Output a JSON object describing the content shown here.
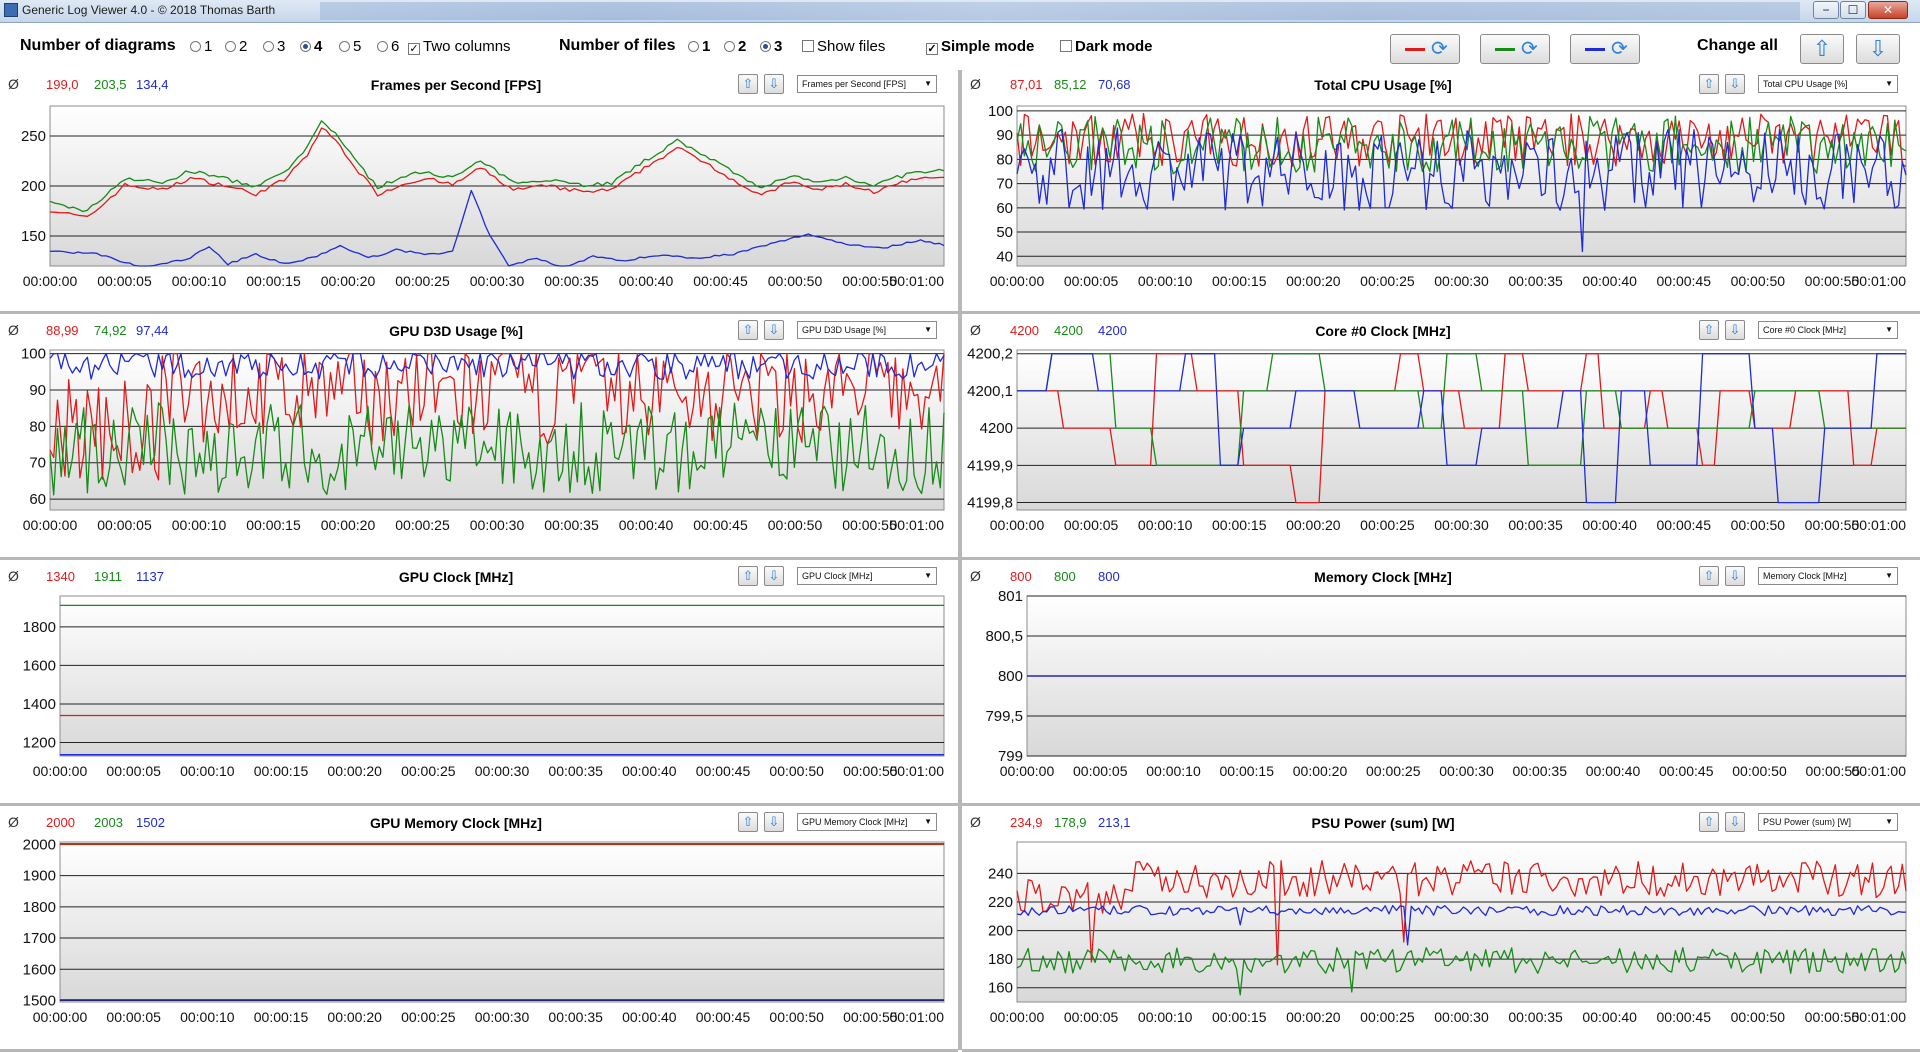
{
  "window": {
    "title": "Generic Log Viewer 4.0 - © 2018 Thomas Barth",
    "minimize": "−",
    "maximize": "☐",
    "close": "✕"
  },
  "toolbar": {
    "num_diagrams_label": "Number of diagrams",
    "diagram_options": [
      "1",
      "2",
      "3",
      "4",
      "5",
      "6"
    ],
    "diagram_selected": "4",
    "two_columns_label": "Two columns",
    "two_columns_checked": true,
    "num_files_label": "Number of files",
    "file_options": [
      "1",
      "2",
      "3"
    ],
    "file_selected": "3",
    "show_files_label": "Show files",
    "show_files_checked": false,
    "simple_mode_label": "Simple mode",
    "simple_mode_checked": true,
    "dark_mode_label": "Dark mode",
    "dark_mode_checked": false,
    "change_all_label": "Change all",
    "series_colors": [
      "#e01b1b",
      "#178a17",
      "#1f2bd6"
    ],
    "up_icon": "arrow-up-icon",
    "down_icon": "arrow-down-icon",
    "swap_icon": "cycle-icon"
  },
  "x_ticks": [
    "00:00:00",
    "00:00:05",
    "00:00:10",
    "00:00:15",
    "00:00:20",
    "00:00:25",
    "00:00:30",
    "00:00:35",
    "00:00:40",
    "00:00:45",
    "00:00:50",
    "00:00:55",
    "00:01:00"
  ],
  "panels": [
    {
      "id": "fps",
      "title": "Frames per Second [FPS]",
      "select": "Frames per Second [FPS]",
      "avg": [
        "199,0",
        "203,5",
        "134,4"
      ],
      "y_ticks": [
        "250",
        "200",
        "150"
      ],
      "y_range": [
        120,
        280
      ],
      "y_values": [
        250,
        200,
        150
      ]
    },
    {
      "id": "cpu",
      "title": "Total CPU Usage [%]",
      "select": "Total CPU Usage [%]",
      "avg": [
        "87,01",
        "85,12",
        "70,68"
      ],
      "y_ticks": [
        "100",
        "90",
        "80",
        "70",
        "60",
        "50",
        "40"
      ],
      "y_range": [
        36,
        102
      ],
      "y_values": [
        100,
        90,
        80,
        70,
        60,
        50,
        40
      ]
    },
    {
      "id": "gpu_usage",
      "title": "GPU D3D Usage [%]",
      "select": "GPU D3D Usage [%]",
      "avg": [
        "88,99",
        "74,92",
        "97,44"
      ],
      "y_ticks": [
        "100",
        "90",
        "80",
        "70",
        "60"
      ],
      "y_range": [
        57,
        101
      ],
      "y_values": [
        100,
        90,
        80,
        70,
        60
      ]
    },
    {
      "id": "core_clock",
      "title": "Core #0 Clock [MHz]",
      "select": "Core #0 Clock [MHz]",
      "avg": [
        "4200",
        "4200",
        "4200"
      ],
      "y_ticks": [
        "4200,2",
        "4200,1",
        "4200",
        "4199,9",
        "4199,8"
      ],
      "y_range": [
        4199.78,
        4200.21
      ],
      "y_values": [
        4200.2,
        4200.1,
        4200,
        4199.9,
        4199.8
      ]
    },
    {
      "id": "gpu_clock",
      "title": "GPU Clock [MHz]",
      "select": "GPU Clock [MHz]",
      "avg": [
        "1340",
        "1911",
        "1137"
      ],
      "y_ticks": [
        "1800",
        "1600",
        "1400",
        "1200"
      ],
      "y_range": [
        1130,
        1960
      ],
      "y_values": [
        1800,
        1600,
        1400,
        1200
      ]
    },
    {
      "id": "mem_clock",
      "title": "Memory Clock [MHz]",
      "select": "Memory Clock [MHz]",
      "avg": [
        "800",
        "800",
        "800"
      ],
      "y_ticks": [
        "801",
        "800,5",
        "800",
        "799,5",
        "799"
      ],
      "y_range": [
        799,
        801
      ],
      "y_values": [
        801,
        800.5,
        800,
        799.5,
        799
      ]
    },
    {
      "id": "gpu_mem",
      "title": "GPU Memory Clock [MHz]",
      "select": "GPU Memory Clock [MHz]",
      "avg": [
        "2000",
        "2003",
        "1502"
      ],
      "y_ticks": [
        "2000",
        "1900",
        "1800",
        "1700",
        "1600",
        "1500"
      ],
      "y_range": [
        1495,
        2008
      ],
      "y_values": [
        2000,
        1900,
        1800,
        1700,
        1600,
        1500
      ]
    },
    {
      "id": "psu",
      "title": "PSU Power (sum) [W]",
      "select": "PSU Power (sum) [W]",
      "avg": [
        "234,9",
        "178,9",
        "213,1"
      ],
      "y_ticks": [
        "240",
        "220",
        "200",
        "180",
        "160"
      ],
      "y_range": [
        150,
        262
      ],
      "y_values": [
        240,
        220,
        200,
        180,
        160
      ]
    }
  ]
}
